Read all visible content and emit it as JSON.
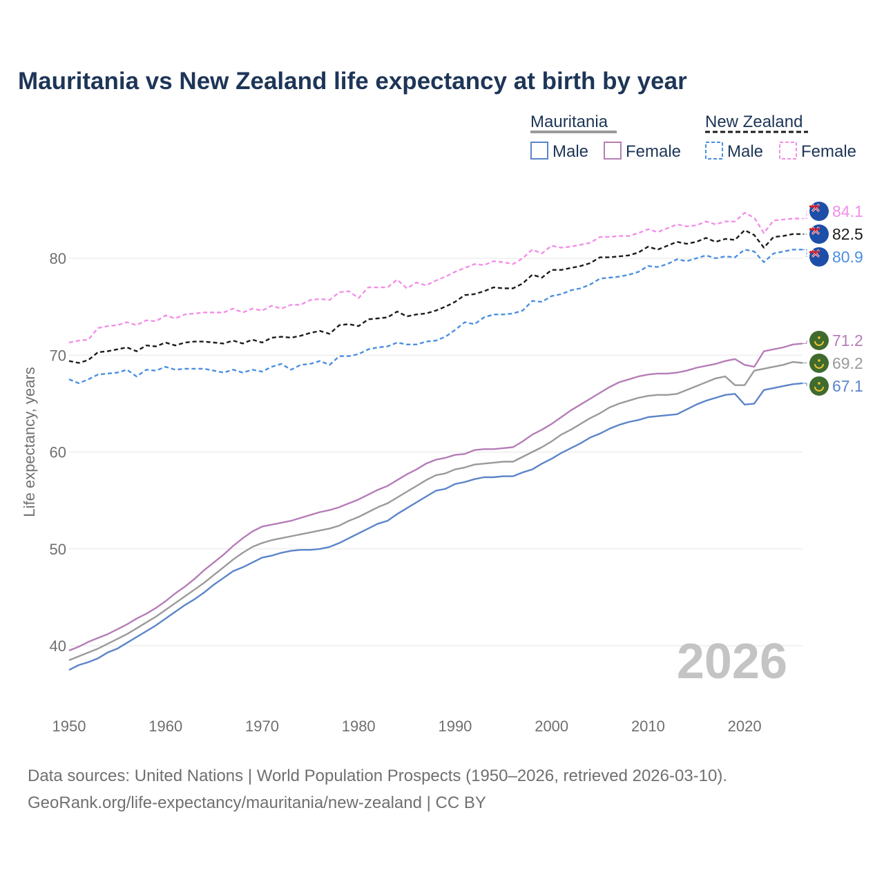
{
  "chart_data": {
    "type": "line",
    "title": "Mauritania vs New Zealand life expectancy at birth by year",
    "xlabel": "",
    "ylabel": "Life expectancy, years",
    "xlim": [
      1950,
      2026
    ],
    "ylim": [
      36,
      88
    ],
    "xticks": [
      1950,
      1960,
      1970,
      1980,
      1990,
      2000,
      2010,
      2020
    ],
    "yticks": [
      40,
      50,
      60,
      70,
      80
    ],
    "year_label": "2026",
    "legend": {
      "groups": [
        {
          "name": "Mauritania",
          "items": [
            "Male",
            "Female"
          ]
        },
        {
          "name": "New Zealand",
          "items": [
            "Male",
            "Female"
          ]
        }
      ]
    },
    "x_start": 1950,
    "series": [
      {
        "name": "Mauritania Male",
        "country": "Mauritania",
        "color": "#5b84c9",
        "dash": false,
        "end_label": "67.1",
        "values": [
          37.5,
          38.0,
          38.3,
          38.7,
          39.3,
          39.7,
          40.3,
          40.9,
          41.5,
          42.1,
          42.8,
          43.5,
          44.2,
          44.8,
          45.5,
          46.3,
          47.0,
          47.7,
          48.1,
          48.6,
          49.1,
          49.3,
          49.6,
          49.8,
          49.9,
          49.9,
          50.0,
          50.2,
          50.6,
          51.1,
          51.6,
          52.1,
          52.6,
          52.9,
          53.6,
          54.2,
          54.8,
          55.4,
          56.0,
          56.2,
          56.7,
          56.9,
          57.2,
          57.4,
          57.4,
          57.5,
          57.5,
          57.9,
          58.2,
          58.8,
          59.3,
          59.9,
          60.4,
          60.9,
          61.5,
          61.9,
          62.4,
          62.8,
          63.1,
          63.3,
          63.6,
          63.7,
          63.8,
          63.9,
          64.4,
          64.9,
          65.3,
          65.6,
          65.9,
          66.0,
          64.9,
          65.0,
          66.4,
          66.6,
          66.8,
          67.0,
          67.1
        ]
      },
      {
        "name": "Mauritania Both sexes",
        "country": "Mauritania",
        "color": "#9a9a9a",
        "dash": false,
        "end_label": "69.2",
        "values": [
          38.5,
          38.9,
          39.3,
          39.7,
          40.2,
          40.7,
          41.2,
          41.8,
          42.4,
          43.0,
          43.7,
          44.4,
          45.1,
          45.8,
          46.5,
          47.3,
          48.1,
          48.9,
          49.6,
          50.2,
          50.6,
          50.9,
          51.1,
          51.3,
          51.5,
          51.7,
          51.9,
          52.1,
          52.4,
          52.9,
          53.3,
          53.8,
          54.3,
          54.7,
          55.3,
          55.9,
          56.5,
          57.1,
          57.6,
          57.8,
          58.2,
          58.4,
          58.7,
          58.8,
          58.9,
          59.0,
          59.0,
          59.5,
          60.0,
          60.5,
          61.1,
          61.8,
          62.3,
          62.9,
          63.5,
          64.0,
          64.6,
          65.0,
          65.3,
          65.6,
          65.8,
          65.9,
          65.9,
          66.0,
          66.4,
          66.8,
          67.2,
          67.6,
          67.8,
          66.9,
          66.9,
          68.4,
          68.6,
          68.8,
          69.0,
          69.3,
          69.2
        ]
      },
      {
        "name": "Mauritania Female",
        "country": "Mauritania",
        "color": "#b57db8",
        "dash": false,
        "end_label": "71.2",
        "values": [
          39.5,
          39.9,
          40.4,
          40.8,
          41.2,
          41.7,
          42.2,
          42.8,
          43.3,
          43.9,
          44.6,
          45.4,
          46.1,
          46.9,
          47.8,
          48.6,
          49.4,
          50.3,
          51.1,
          51.8,
          52.3,
          52.5,
          52.7,
          52.9,
          53.2,
          53.5,
          53.8,
          54.0,
          54.3,
          54.7,
          55.1,
          55.6,
          56.1,
          56.5,
          57.1,
          57.7,
          58.2,
          58.8,
          59.2,
          59.4,
          59.7,
          59.8,
          60.2,
          60.3,
          60.3,
          60.4,
          60.5,
          61.1,
          61.8,
          62.3,
          62.9,
          63.6,
          64.3,
          64.9,
          65.5,
          66.1,
          66.7,
          67.2,
          67.5,
          67.8,
          68.0,
          68.1,
          68.1,
          68.2,
          68.4,
          68.7,
          68.9,
          69.1,
          69.4,
          69.6,
          69.0,
          68.8,
          70.4,
          70.6,
          70.8,
          71.1,
          71.2
        ]
      },
      {
        "name": "New Zealand Male",
        "country": "New Zealand",
        "color": "#4a8fe0",
        "dash": true,
        "end_label": "80.9",
        "values": [
          67.5,
          67.1,
          67.5,
          68.0,
          68.1,
          68.2,
          68.5,
          67.8,
          68.5,
          68.4,
          68.8,
          68.5,
          68.6,
          68.6,
          68.6,
          68.4,
          68.2,
          68.5,
          68.2,
          68.5,
          68.3,
          68.8,
          69.1,
          68.5,
          69.0,
          69.1,
          69.4,
          69.0,
          69.9,
          69.9,
          70.1,
          70.6,
          70.8,
          70.9,
          71.3,
          71.1,
          71.1,
          71.4,
          71.5,
          71.9,
          72.6,
          73.4,
          73.2,
          73.9,
          74.2,
          74.2,
          74.3,
          74.6,
          75.6,
          75.5,
          76.1,
          76.3,
          76.7,
          76.9,
          77.3,
          77.9,
          78.0,
          78.1,
          78.3,
          78.6,
          79.2,
          79.1,
          79.4,
          79.9,
          79.7,
          80.0,
          80.3,
          80.0,
          80.2,
          80.1,
          80.9,
          80.7,
          79.6,
          80.5,
          80.7,
          80.9,
          80.9
        ]
      },
      {
        "name": "New Zealand Both sexes",
        "country": "New Zealand",
        "color": "#1b1b1b",
        "dash": true,
        "end_label": "82.5",
        "values": [
          69.4,
          69.2,
          69.5,
          70.3,
          70.4,
          70.6,
          70.8,
          70.4,
          71.0,
          70.9,
          71.3,
          71.0,
          71.3,
          71.4,
          71.4,
          71.3,
          71.2,
          71.5,
          71.2,
          71.6,
          71.3,
          71.8,
          71.9,
          71.8,
          72.0,
          72.3,
          72.5,
          72.2,
          73.1,
          73.2,
          73.0,
          73.7,
          73.8,
          73.9,
          74.5,
          74.0,
          74.2,
          74.3,
          74.6,
          75.0,
          75.5,
          76.2,
          76.3,
          76.6,
          77.0,
          76.9,
          76.9,
          77.4,
          78.3,
          78.0,
          78.8,
          78.8,
          79.0,
          79.2,
          79.5,
          80.1,
          80.1,
          80.2,
          80.3,
          80.6,
          81.2,
          80.9,
          81.3,
          81.7,
          81.5,
          81.7,
          82.1,
          81.7,
          82.0,
          81.9,
          82.9,
          82.4,
          81.1,
          82.2,
          82.3,
          82.5,
          82.5
        ]
      },
      {
        "name": "New Zealand Female",
        "country": "New Zealand",
        "color": "#f28ee8",
        "dash": true,
        "end_label": "84.1",
        "values": [
          71.3,
          71.5,
          71.6,
          72.8,
          73.0,
          73.1,
          73.4,
          73.1,
          73.6,
          73.5,
          74.1,
          73.8,
          74.2,
          74.3,
          74.4,
          74.4,
          74.4,
          74.8,
          74.4,
          74.8,
          74.6,
          75.1,
          74.8,
          75.2,
          75.2,
          75.7,
          75.8,
          75.7,
          76.5,
          76.6,
          75.9,
          77.0,
          77.0,
          77.0,
          77.8,
          76.9,
          77.5,
          77.2,
          77.7,
          78.1,
          78.6,
          79.0,
          79.4,
          79.3,
          79.7,
          79.6,
          79.4,
          80.0,
          80.9,
          80.5,
          81.3,
          81.1,
          81.2,
          81.4,
          81.6,
          82.2,
          82.2,
          82.3,
          82.3,
          82.6,
          83.0,
          82.7,
          83.1,
          83.5,
          83.3,
          83.4,
          83.8,
          83.5,
          83.8,
          83.8,
          84.7,
          84.2,
          82.6,
          83.9,
          84.0,
          84.1,
          84.1
        ]
      }
    ]
  },
  "source": {
    "line1": "Data sources: United Nations | World Population Prospects (1950–2026, retrieved 2026-03-10).",
    "line2": "GeoRank.org/life-expectancy/mauritania/new-zealand | CC BY"
  }
}
